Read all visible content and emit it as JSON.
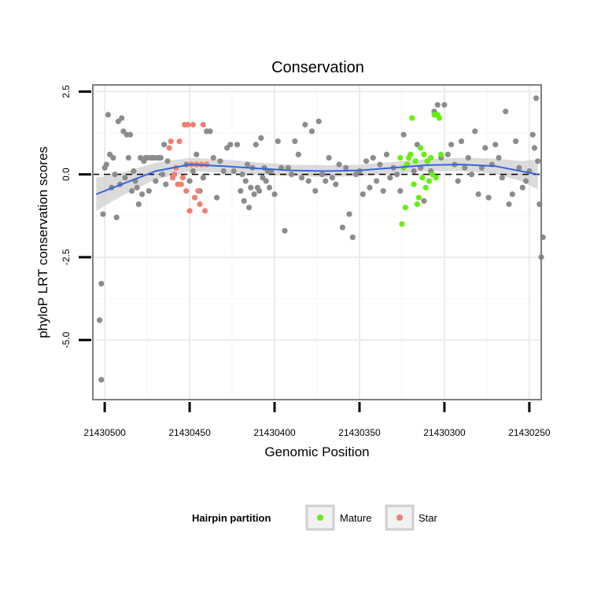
{
  "chart_data": {
    "type": "scatter",
    "title": "Conservation",
    "xlabel": "Genomic Position",
    "ylabel": "phyloP LRT conservation scores",
    "x_reversed": true,
    "xlim": [
      21430507,
      21430243
    ],
    "ylim": [
      -6.8,
      2.7
    ],
    "x_ticks": [
      21430500,
      21430450,
      21430400,
      21430350,
      21430300,
      21430250
    ],
    "x_tick_labels": [
      "21430500",
      "21430450",
      "21430400",
      "21430350",
      "21430300",
      "21430250"
    ],
    "y_ticks": [
      2.5,
      0.0,
      -2.5,
      -5.0
    ],
    "y_tick_labels": [
      "2.5",
      "0.0",
      "-2.5",
      "-5.0"
    ],
    "reference_line": {
      "y": 0,
      "style": "dashed"
    },
    "grid": true,
    "legend": {
      "title": "Hairpin partition",
      "placement": "bottom",
      "entries": [
        {
          "label": "Mature",
          "color": "#66ee11"
        },
        {
          "label": "Star",
          "color": "#f08072"
        }
      ]
    },
    "colors": {
      "other": "#8c8c8c",
      "Mature": "#66ee11",
      "Star": "#f08072",
      "smooth": "#3366dd",
      "ribbon": "#cfcfcf"
    },
    "series": [
      {
        "name": "Other",
        "points": [
          [
            21430502,
            -6.2
          ],
          [
            21430503,
            -4.4
          ],
          [
            21430502,
            -3.3
          ],
          [
            21430501,
            -1.2
          ],
          [
            21430500,
            0.2
          ],
          [
            21430499,
            0.3
          ],
          [
            21430498,
            1.8
          ],
          [
            21430497,
            0.6
          ],
          [
            21430496,
            -0.4
          ],
          [
            21430495,
            0.5
          ],
          [
            21430494,
            0.0
          ],
          [
            21430493,
            -1.3
          ],
          [
            21430492,
            1.6
          ],
          [
            21430491,
            -0.3
          ],
          [
            21430490,
            1.7
          ],
          [
            21430489,
            1.3
          ],
          [
            21430488,
            -0.1
          ],
          [
            21430487,
            1.2
          ],
          [
            21430486,
            0.5
          ],
          [
            21430485,
            1.2
          ],
          [
            21430484,
            -0.5
          ],
          [
            21430483,
            0.1
          ],
          [
            21430482,
            -0.2
          ],
          [
            21430481,
            -0.4
          ],
          [
            21430480,
            -0.9
          ],
          [
            21430479,
            0.5
          ],
          [
            21430478,
            -0.6
          ],
          [
            21430477,
            0.4
          ],
          [
            21430476,
            0.5
          ],
          [
            21430475,
            0.5
          ],
          [
            21430474,
            -0.5
          ],
          [
            21430473,
            0.5
          ],
          [
            21430472,
            0.5
          ],
          [
            21430471,
            0.5
          ],
          [
            21430470,
            -0.2
          ],
          [
            21430469,
            0.5
          ],
          [
            21430468,
            0.5
          ],
          [
            21430467,
            0.5
          ],
          [
            21430466,
            0.0
          ],
          [
            21430465,
            0.9
          ],
          [
            21430464,
            -0.3
          ],
          [
            21430463,
            0.4
          ],
          [
            21430452,
            0.3
          ],
          [
            21430450,
            -0.2
          ],
          [
            21430448,
            0.1
          ],
          [
            21430446,
            0.6
          ],
          [
            21430444,
            -0.5
          ],
          [
            21430442,
            -0.1
          ],
          [
            21430440,
            1.3
          ],
          [
            21430438,
            1.3
          ],
          [
            21430436,
            0.5
          ],
          [
            21430434,
            -0.7
          ],
          [
            21430432,
            0.4
          ],
          [
            21430430,
            0.1
          ],
          [
            21430428,
            0.8
          ],
          [
            21430426,
            0.9
          ],
          [
            21430424,
            0.1
          ],
          [
            21430422,
            0.9
          ],
          [
            21430420,
            -0.5
          ],
          [
            21430419,
            0.0
          ],
          [
            21430418,
            -0.8
          ],
          [
            21430417,
            -0.2
          ],
          [
            21430416,
            0.3
          ],
          [
            21430415,
            -1.0
          ],
          [
            21430414,
            -0.4
          ],
          [
            21430413,
            0.2
          ],
          [
            21430412,
            -0.6
          ],
          [
            21430411,
            0.9
          ],
          [
            21430410,
            -0.4
          ],
          [
            21430409,
            -0.5
          ],
          [
            21430408,
            1.1
          ],
          [
            21430407,
            -0.1
          ],
          [
            21430406,
            0.2
          ],
          [
            21430405,
            -0.2
          ],
          [
            21430404,
            0.1
          ],
          [
            21430403,
            -0.4
          ],
          [
            21430402,
            0.1
          ],
          [
            21430400,
            -0.6
          ],
          [
            21430398,
            1.0
          ],
          [
            21430396,
            0.2
          ],
          [
            21430394,
            -1.7
          ],
          [
            21430392,
            0.2
          ],
          [
            21430390,
            0.0
          ],
          [
            21430388,
            1.0
          ],
          [
            21430386,
            0.6
          ],
          [
            21430384,
            -0.1
          ],
          [
            21430382,
            1.5
          ],
          [
            21430380,
            -0.2
          ],
          [
            21430378,
            1.3
          ],
          [
            21430376,
            -0.5
          ],
          [
            21430374,
            1.6
          ],
          [
            21430372,
            0.0
          ],
          [
            21430370,
            -0.2
          ],
          [
            21430368,
            0.5
          ],
          [
            21430366,
            -0.1
          ],
          [
            21430364,
            -0.3
          ],
          [
            21430362,
            0.3
          ],
          [
            21430360,
            -1.6
          ],
          [
            21430358,
            0.2
          ],
          [
            21430356,
            -1.2
          ],
          [
            21430354,
            -1.9
          ],
          [
            21430352,
            0.0
          ],
          [
            21430350,
            0.1
          ],
          [
            21430348,
            -0.6
          ],
          [
            21430346,
            0.4
          ],
          [
            21430344,
            -0.4
          ],
          [
            21430342,
            0.5
          ],
          [
            21430340,
            -0.2
          ],
          [
            21430338,
            0.3
          ],
          [
            21430336,
            -0.5
          ],
          [
            21430334,
            0.6
          ],
          [
            21430332,
            -0.1
          ],
          [
            21430330,
            0.2
          ],
          [
            21430328,
            0.0
          ],
          [
            21430326,
            -0.5
          ],
          [
            21430324,
            1.2
          ],
          [
            21430322,
            0.3
          ],
          [
            21430320,
            0.6
          ],
          [
            21430318,
            0.1
          ],
          [
            21430316,
            0.9
          ],
          [
            21430314,
            0.2
          ],
          [
            21430312,
            -0.8
          ],
          [
            21430310,
            0.4
          ],
          [
            21430308,
            0.1
          ],
          [
            21430306,
            1.9
          ],
          [
            21430304,
            2.1
          ],
          [
            21430302,
            0.5
          ],
          [
            21430300,
            2.1
          ],
          [
            21430298,
            0.6
          ],
          [
            21430296,
            0.9
          ],
          [
            21430294,
            0.3
          ],
          [
            21430292,
            -0.2
          ],
          [
            21430290,
            1.0
          ],
          [
            21430288,
            0.2
          ],
          [
            21430286,
            0.5
          ],
          [
            21430284,
            0.0
          ],
          [
            21430282,
            1.3
          ],
          [
            21430280,
            -0.6
          ],
          [
            21430278,
            0.2
          ],
          [
            21430276,
            0.8
          ],
          [
            21430274,
            -0.7
          ],
          [
            21430272,
            0.3
          ],
          [
            21430270,
            0.9
          ],
          [
            21430268,
            0.5
          ],
          [
            21430266,
            -0.1
          ],
          [
            21430264,
            1.9
          ],
          [
            21430262,
            -0.9
          ],
          [
            21430260,
            -0.6
          ],
          [
            21430258,
            1.0
          ],
          [
            21430256,
            0.2
          ],
          [
            21430254,
            -0.4
          ],
          [
            21430252,
            -0.2
          ],
          [
            21430250,
            0.1
          ],
          [
            21430248,
            1.2
          ],
          [
            21430247,
            0.8
          ],
          [
            21430246,
            2.3
          ],
          [
            21430245,
            0.4
          ],
          [
            21430244,
            -0.9
          ],
          [
            21430243,
            -2.5
          ],
          [
            21430242,
            -1.9
          ]
        ]
      },
      {
        "name": "Mature",
        "points": [
          [
            21430326,
            0.5
          ],
          [
            21430325,
            -1.5
          ],
          [
            21430324,
            0.2
          ],
          [
            21430323,
            -1.0
          ],
          [
            21430322,
            0.3
          ],
          [
            21430321,
            0.5
          ],
          [
            21430320,
            0.6
          ],
          [
            21430319,
            1.7
          ],
          [
            21430318,
            -0.3
          ],
          [
            21430317,
            0.4
          ],
          [
            21430316,
            -0.9
          ],
          [
            21430315,
            -0.7
          ],
          [
            21430314,
            0.8
          ],
          [
            21430313,
            -0.1
          ],
          [
            21430312,
            0.6
          ],
          [
            21430311,
            -0.4
          ],
          [
            21430310,
            0.4
          ],
          [
            21430309,
            -0.2
          ],
          [
            21430308,
            0.5
          ],
          [
            21430307,
            0.0
          ],
          [
            21430306,
            1.8
          ],
          [
            21430305,
            -0.1
          ],
          [
            21430304,
            1.8
          ],
          [
            21430303,
            1.7
          ],
          [
            21430302,
            0.6
          ]
        ]
      },
      {
        "name": "Star",
        "points": [
          [
            21430462,
            0.8
          ],
          [
            21430461,
            1.0
          ],
          [
            21430460,
            -0.1
          ],
          [
            21430459,
            0.0
          ],
          [
            21430458,
            0.2
          ],
          [
            21430457,
            -0.3
          ],
          [
            21430456,
            1.0
          ],
          [
            21430455,
            -0.3
          ],
          [
            21430454,
            -0.1
          ],
          [
            21430453,
            1.5
          ],
          [
            21430452,
            -0.5
          ],
          [
            21430451,
            1.5
          ],
          [
            21430450,
            -1.1
          ],
          [
            21430449,
            0.3
          ],
          [
            21430448,
            1.5
          ],
          [
            21430447,
            -0.7
          ],
          [
            21430446,
            0.3
          ],
          [
            21430445,
            -0.5
          ],
          [
            21430444,
            -0.9
          ],
          [
            21430443,
            0.3
          ],
          [
            21430442,
            1.5
          ],
          [
            21430441,
            -1.1
          ],
          [
            21430440,
            0.3
          ]
        ]
      }
    ],
    "smooth_line": {
      "x": [
        21430505,
        21430490,
        21430470,
        21430450,
        21430430,
        21430410,
        21430390,
        21430370,
        21430350,
        21430330,
        21430310,
        21430290,
        21430270,
        21430255,
        21430245
      ],
      "y": [
        -0.6,
        -0.3,
        0.1,
        0.3,
        0.25,
        0.18,
        0.12,
        0.1,
        0.12,
        0.2,
        0.28,
        0.3,
        0.25,
        0.1,
        0.0
      ]
    },
    "confidence_band": {
      "x": [
        21430505,
        21430490,
        21430470,
        21430450,
        21430430,
        21430410,
        21430390,
        21430370,
        21430350,
        21430330,
        21430310,
        21430290,
        21430270,
        21430255,
        21430245
      ],
      "lower": [
        -1.1,
        -0.65,
        -0.15,
        0.1,
        0.05,
        0.0,
        -0.05,
        -0.08,
        -0.05,
        0.02,
        0.1,
        0.1,
        0.02,
        -0.2,
        -0.45
      ],
      "upper": [
        -0.1,
        0.05,
        0.35,
        0.5,
        0.45,
        0.36,
        0.29,
        0.28,
        0.29,
        0.38,
        0.46,
        0.5,
        0.48,
        0.4,
        0.45
      ]
    }
  }
}
